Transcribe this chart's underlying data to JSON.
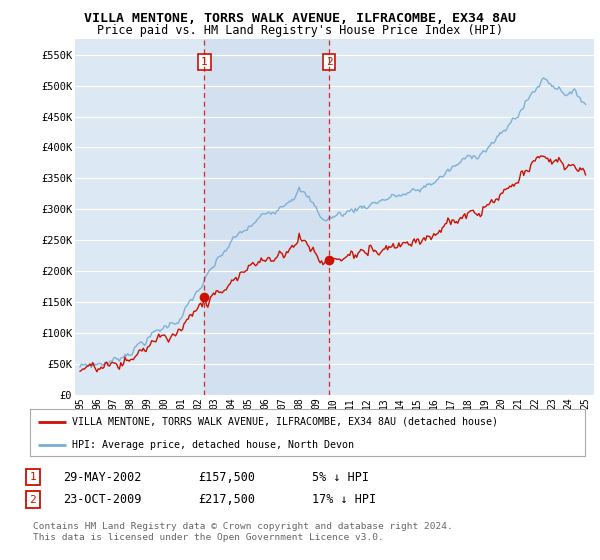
{
  "title1": "VILLA MENTONE, TORRS WALK AVENUE, ILFRACOMBE, EX34 8AU",
  "title2": "Price paid vs. HM Land Registry's House Price Index (HPI)",
  "ylabel_ticks": [
    "£0",
    "£50K",
    "£100K",
    "£150K",
    "£200K",
    "£250K",
    "£300K",
    "£350K",
    "£400K",
    "£450K",
    "£500K",
    "£550K"
  ],
  "ytick_values": [
    0,
    50000,
    100000,
    150000,
    200000,
    250000,
    300000,
    350000,
    400000,
    450000,
    500000,
    550000
  ],
  "ylim": [
    0,
    575000
  ],
  "xlim_start": 1994.7,
  "xlim_end": 2025.5,
  "sale1_x": 2002.38,
  "sale1_y": 157500,
  "sale1_label": "1",
  "sale2_x": 2009.79,
  "sale2_y": 217500,
  "sale2_label": "2",
  "hpi_color": "#7aaed4",
  "sale_color": "#cc1100",
  "bg_plot": "#dce8f3",
  "bg_shade": "#ccdcee",
  "bg_fig": "#ffffff",
  "grid_color": "#ffffff",
  "legend_line1": "VILLA MENTONE, TORRS WALK AVENUE, ILFRACOMBE, EX34 8AU (detached house)",
  "legend_line2": "HPI: Average price, detached house, North Devon",
  "table_row1": [
    "1",
    "29-MAY-2002",
    "£157,500",
    "5% ↓ HPI"
  ],
  "table_row2": [
    "2",
    "23-OCT-2009",
    "£217,500",
    "17% ↓ HPI"
  ],
  "footnote1": "Contains HM Land Registry data © Crown copyright and database right 2024.",
  "footnote2": "This data is licensed under the Open Government Licence v3.0.",
  "dashed_x1": 2002.38,
  "dashed_x2": 2009.79,
  "title_fontsize": 9.5,
  "subtitle_fontsize": 8.5
}
